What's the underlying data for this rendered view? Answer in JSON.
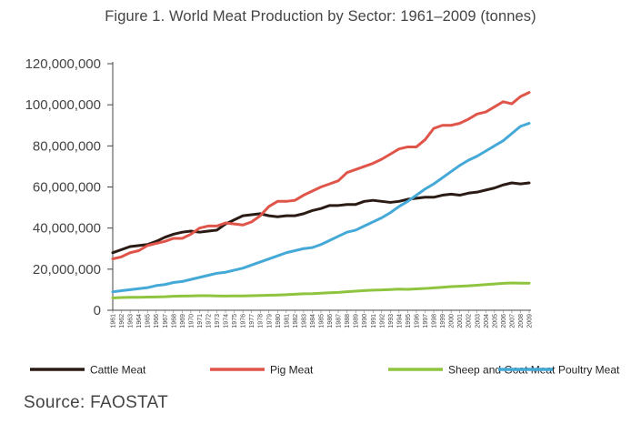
{
  "title": "Figure 1. World Meat Production by Sector: 1961–2009 (tonnes)",
  "source": "Source: FAOSTAT",
  "chart_data": {
    "type": "line",
    "title": "Figure 1. World Meat Production by Sector: 1961–2009 (tonnes)",
    "xlabel": "",
    "ylabel": "",
    "ylim": [
      0,
      120000000
    ],
    "yticks": [
      0,
      20000000,
      40000000,
      60000000,
      80000000,
      100000000,
      120000000
    ],
    "ytick_labels": [
      "0",
      "20,000,000",
      "40,000,000",
      "60,000,000",
      "80,000,000",
      "100,000,000",
      "120,000,000"
    ],
    "grid": false,
    "legend_position": "bottom",
    "x": [
      1961,
      1962,
      1963,
      1964,
      1965,
      1966,
      1967,
      1968,
      1969,
      1970,
      1971,
      1972,
      1973,
      1974,
      1975,
      1976,
      1977,
      1978,
      1979,
      1980,
      1981,
      1982,
      1983,
      1984,
      1985,
      1986,
      1987,
      1988,
      1989,
      1990,
      1991,
      1992,
      1993,
      1994,
      1995,
      1996,
      1997,
      1998,
      1999,
      2000,
      2001,
      2002,
      2003,
      2004,
      2005,
      2006,
      2007,
      2008,
      2009
    ],
    "x_labels": [
      "1961",
      "1962",
      "1963",
      "1964",
      "1965",
      "1966",
      "1967",
      "1968",
      "1969",
      "1970",
      "1971",
      "1972",
      "1973",
      "1974",
      "1975",
      "1976",
      "1977",
      "1978",
      "1979",
      "1980",
      "1981",
      "1982",
      "1983",
      "1984",
      "1985",
      "1986",
      "1987",
      "1988",
      "1989",
      "1990",
      "1991",
      "1992",
      "1993",
      "1994",
      "1995",
      "1996",
      "1997",
      "1998",
      "1999",
      "2000",
      "2001",
      "2002",
      "2003",
      "2004",
      "2005",
      "2006",
      "2007",
      "2008",
      "2009"
    ],
    "series": [
      {
        "name": "Cattle Meat",
        "color": "#2b1b15",
        "values": [
          28000000,
          29500000,
          31000000,
          31500000,
          32000000,
          33500000,
          35500000,
          37000000,
          38000000,
          38500000,
          38000000,
          38500000,
          39000000,
          42000000,
          44000000,
          46000000,
          46500000,
          47000000,
          46000000,
          45500000,
          46000000,
          46000000,
          47000000,
          48500000,
          49500000,
          51000000,
          51000000,
          51500000,
          51500000,
          53000000,
          53500000,
          53000000,
          52500000,
          53000000,
          54000000,
          54500000,
          55000000,
          55000000,
          56000000,
          56500000,
          56000000,
          57000000,
          57500000,
          58500000,
          59500000,
          61000000,
          62000000,
          61500000,
          62000000
        ]
      },
      {
        "name": "Pig Meat",
        "color": "#e0554a",
        "values": [
          25000000,
          26000000,
          28000000,
          29000000,
          31500000,
          32500000,
          33500000,
          35000000,
          35000000,
          37000000,
          40000000,
          41000000,
          41000000,
          42500000,
          42000000,
          41500000,
          43000000,
          46000000,
          50500000,
          53000000,
          53000000,
          53500000,
          56000000,
          58000000,
          60000000,
          61500000,
          63000000,
          67000000,
          68500000,
          70000000,
          71500000,
          73500000,
          76000000,
          78500000,
          79500000,
          79500000,
          83000000,
          88500000,
          90000000,
          90000000,
          91000000,
          93000000,
          95500000,
          96500000,
          99000000,
          101500000,
          100500000,
          104000000,
          106000000
        ]
      },
      {
        "name": "Sheep and Goat Meat",
        "color": "#8fc43f",
        "values": [
          6000000,
          6200000,
          6300000,
          6300000,
          6400000,
          6500000,
          6600000,
          6800000,
          6900000,
          7000000,
          7100000,
          7100000,
          7000000,
          6900000,
          7000000,
          7000000,
          7100000,
          7200000,
          7300000,
          7400000,
          7600000,
          7800000,
          8000000,
          8100000,
          8300000,
          8500000,
          8700000,
          9000000,
          9300000,
          9600000,
          9800000,
          9900000,
          10100000,
          10300000,
          10200000,
          10400000,
          10600000,
          10900000,
          11200000,
          11500000,
          11700000,
          11900000,
          12200000,
          12500000,
          12800000,
          13100000,
          13300000,
          13200000,
          13200000
        ]
      },
      {
        "name": "Poultry Meat",
        "color": "#45a9d8",
        "values": [
          9000000,
          9500000,
          10000000,
          10500000,
          11000000,
          12000000,
          12500000,
          13500000,
          14000000,
          15000000,
          16000000,
          17000000,
          18000000,
          18500000,
          19500000,
          20500000,
          22000000,
          23500000,
          25000000,
          26500000,
          28000000,
          29000000,
          30000000,
          30500000,
          32000000,
          34000000,
          36000000,
          38000000,
          39000000,
          41000000,
          43000000,
          45000000,
          47500000,
          50500000,
          53000000,
          56000000,
          59000000,
          61500000,
          64500000,
          67500000,
          70500000,
          73000000,
          75000000,
          77500000,
          80000000,
          82500000,
          86000000,
          89500000,
          91000000
        ]
      }
    ]
  }
}
